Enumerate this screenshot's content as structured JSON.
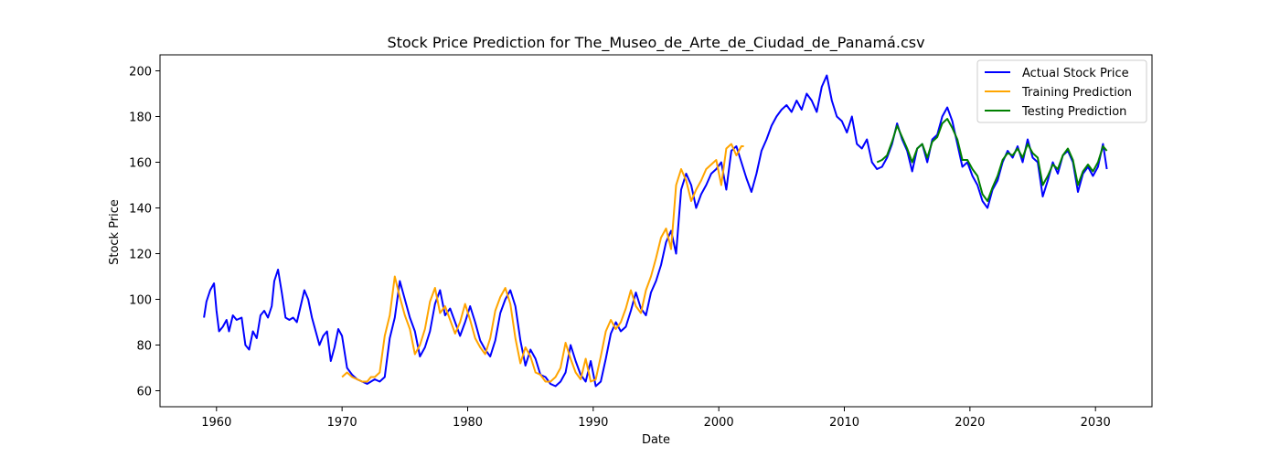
{
  "chart_data": {
    "type": "line",
    "title": "Stock Price Prediction for The_Museo_de_Arte_de_Ciudad_de_Panamá.csv",
    "xlabel": "Date",
    "ylabel": "Stock Price",
    "xlim": [
      1955.5,
      2034.5
    ],
    "ylim": [
      53,
      207
    ],
    "x_ticks": [
      1960,
      1970,
      1980,
      1990,
      2000,
      2010,
      2020,
      2030
    ],
    "y_ticks": [
      60,
      80,
      100,
      120,
      140,
      160,
      180,
      200
    ],
    "legend_position": "top-right",
    "grid": false,
    "series": [
      {
        "name": "Actual Stock Price",
        "color": "#0000ff",
        "x": [
          1959.0,
          1959.2,
          1959.5,
          1959.8,
          1960.0,
          1960.2,
          1960.5,
          1960.8,
          1961.0,
          1961.3,
          1961.6,
          1962.0,
          1962.3,
          1962.6,
          1962.9,
          1963.2,
          1963.5,
          1963.8,
          1964.1,
          1964.4,
          1964.6,
          1964.9,
          1965.2,
          1965.5,
          1965.8,
          1966.1,
          1966.4,
          1966.7,
          1967.0,
          1967.3,
          1967.6,
          1967.9,
          1968.2,
          1968.5,
          1968.8,
          1969.1,
          1969.4,
          1969.7,
          1970.0,
          1970.4,
          1970.8,
          1971.2,
          1971.6,
          1972.0,
          1972.3,
          1972.6,
          1973.0,
          1973.4,
          1973.8,
          1974.2,
          1974.6,
          1975.0,
          1975.4,
          1975.8,
          1976.2,
          1976.6,
          1977.0,
          1977.4,
          1977.8,
          1978.2,
          1978.6,
          1979.0,
          1979.4,
          1979.8,
          1980.2,
          1980.6,
          1981.0,
          1981.4,
          1981.8,
          1982.2,
          1982.6,
          1983.0,
          1983.4,
          1983.8,
          1984.2,
          1984.6,
          1985.0,
          1985.4,
          1985.8,
          1986.2,
          1986.6,
          1987.0,
          1987.4,
          1987.8,
          1988.2,
          1988.6,
          1989.0,
          1989.4,
          1989.8,
          1990.2,
          1990.6,
          1991.0,
          1991.4,
          1991.8,
          1992.2,
          1992.6,
          1993.0,
          1993.4,
          1993.8,
          1994.2,
          1994.6,
          1995.0,
          1995.4,
          1995.8,
          1996.2,
          1996.6,
          1997.0,
          1997.4,
          1997.8,
          1998.2,
          1998.6,
          1999.0,
          1999.4,
          1999.8,
          2000.2,
          2000.6,
          2001.0,
          2001.4,
          2001.8,
          2002.2,
          2002.6,
          2003.0,
          2003.4,
          2003.8,
          2004.2,
          2004.6,
          2005.0,
          2005.4,
          2005.8,
          2006.2,
          2006.6,
          2007.0,
          2007.4,
          2007.8,
          2008.2,
          2008.6,
          2009.0,
          2009.4,
          2009.8,
          2010.2,
          2010.6,
          2011.0,
          2011.4,
          2011.8,
          2012.2,
          2012.6,
          2013.0,
          2013.4,
          2013.8,
          2014.2,
          2014.6,
          2015.0,
          2015.4,
          2015.8,
          2016.2,
          2016.6,
          2017.0,
          2017.4,
          2017.8,
          2018.2,
          2018.6,
          2019.0,
          2019.4,
          2019.8,
          2020.2,
          2020.6,
          2021.0,
          2021.4,
          2021.8,
          2022.2,
          2022.6,
          2023.0,
          2023.4,
          2023.8,
          2024.2,
          2024.6,
          2025.0,
          2025.4,
          2025.8,
          2026.2,
          2026.6,
          2027.0,
          2027.4,
          2027.8,
          2028.2,
          2028.6,
          2029.0,
          2029.4,
          2029.8,
          2030.2,
          2030.6,
          2030.9
        ],
        "values": [
          92,
          99,
          104,
          107,
          95,
          86,
          88,
          91,
          86,
          93,
          91,
          92,
          80,
          78,
          86,
          83,
          93,
          95,
          92,
          97,
          108,
          113,
          103,
          92,
          91,
          92,
          90,
          97,
          104,
          100,
          92,
          86,
          80,
          84,
          86,
          73,
          79,
          87,
          84,
          70,
          67,
          65,
          64,
          63,
          64,
          65,
          64,
          66,
          83,
          92,
          108,
          100,
          92,
          86,
          75,
          79,
          86,
          98,
          104,
          93,
          96,
          90,
          84,
          90,
          97,
          90,
          82,
          78,
          75,
          82,
          94,
          100,
          104,
          97,
          82,
          71,
          78,
          74,
          67,
          66,
          63,
          62,
          64,
          68,
          80,
          73,
          67,
          64,
          73,
          62,
          64,
          74,
          85,
          90,
          86,
          88,
          95,
          103,
          96,
          93,
          103,
          108,
          115,
          125,
          130,
          120,
          148,
          155,
          150,
          140,
          146,
          150,
          155,
          157,
          160,
          148,
          165,
          167,
          160,
          153,
          147,
          155,
          165,
          170,
          176,
          180,
          183,
          185,
          182,
          187,
          183,
          190,
          187,
          182,
          193,
          198,
          187,
          180,
          178,
          173,
          180,
          168,
          166,
          170,
          160,
          157,
          158,
          162,
          168,
          177,
          170,
          165,
          156,
          166,
          168,
          160,
          170,
          172,
          180,
          184,
          178,
          168,
          158,
          160,
          154,
          150,
          143,
          140,
          148,
          152,
          160,
          165,
          162,
          167,
          160,
          170,
          162,
          160,
          145,
          152,
          160,
          155,
          163,
          165,
          160,
          147,
          155,
          158,
          154,
          158,
          168,
          157
        ],
        "start": 0,
        "end": 191
      },
      {
        "name": "Training Prediction",
        "color": "#ffa500",
        "x": [
          1970.0,
          1970.4,
          1970.8,
          1971.2,
          1971.6,
          1972.0,
          1972.3,
          1972.6,
          1973.0,
          1973.4,
          1973.8,
          1974.2,
          1974.6,
          1975.0,
          1975.4,
          1975.8,
          1976.2,
          1976.6,
          1977.0,
          1977.4,
          1977.8,
          1978.2,
          1978.6,
          1979.0,
          1979.4,
          1979.8,
          1980.2,
          1980.6,
          1981.0,
          1981.4,
          1981.8,
          1982.2,
          1982.6,
          1983.0,
          1983.4,
          1983.8,
          1984.2,
          1984.6,
          1985.0,
          1985.4,
          1985.8,
          1986.2,
          1986.6,
          1987.0,
          1987.4,
          1987.8,
          1988.2,
          1988.6,
          1989.0,
          1989.4,
          1989.8,
          1990.2,
          1990.6,
          1991.0,
          1991.4,
          1991.8,
          1992.2,
          1992.6,
          1993.0,
          1993.4,
          1993.8,
          1994.2,
          1994.6,
          1995.0,
          1995.4,
          1995.8,
          1996.2,
          1996.6,
          1997.0,
          1997.4,
          1997.8,
          1998.2,
          1998.6,
          1999.0,
          1999.4,
          1999.8,
          2000.2,
          2000.6,
          2001.0,
          2001.4,
          2001.8,
          2002.0
        ],
        "values": [
          66,
          68,
          66,
          65,
          64,
          64,
          66,
          66,
          68,
          84,
          93,
          110,
          101,
          93,
          87,
          76,
          80,
          87,
          99,
          105,
          94,
          97,
          91,
          85,
          90,
          98,
          91,
          83,
          79,
          76,
          83,
          95,
          101,
          105,
          98,
          83,
          72,
          79,
          75,
          68,
          67,
          64,
          64,
          66,
          70,
          81,
          74,
          68,
          65,
          74,
          64,
          65,
          75,
          86,
          91,
          87,
          90,
          96,
          104,
          97,
          94,
          104,
          110,
          118,
          127,
          131,
          122,
          150,
          157,
          152,
          143,
          148,
          152,
          157,
          159,
          161,
          150,
          166,
          168,
          163,
          167,
          167
        ]
      },
      {
        "name": "Testing Prediction",
        "color": "#008000",
        "x": [
          2012.6,
          2013.0,
          2013.4,
          2013.8,
          2014.2,
          2014.6,
          2015.0,
          2015.4,
          2015.8,
          2016.2,
          2016.6,
          2017.0,
          2017.4,
          2017.8,
          2018.2,
          2018.6,
          2019.0,
          2019.4,
          2019.8,
          2020.2,
          2020.6,
          2021.0,
          2021.4,
          2021.8,
          2022.2,
          2022.6,
          2023.0,
          2023.4,
          2023.8,
          2024.2,
          2024.6,
          2025.0,
          2025.4,
          2025.8,
          2026.2,
          2026.6,
          2027.0,
          2027.4,
          2027.8,
          2028.2,
          2028.6,
          2029.0,
          2029.4,
          2029.8,
          2030.2,
          2030.6,
          2030.9
        ],
        "values": [
          160,
          161,
          163,
          169,
          176,
          171,
          166,
          160,
          166,
          168,
          162,
          169,
          171,
          177,
          179,
          175,
          170,
          161,
          161,
          157,
          154,
          146,
          143,
          149,
          154,
          161,
          164,
          163,
          166,
          162,
          168,
          164,
          162,
          150,
          154,
          159,
          157,
          163,
          166,
          161,
          150,
          156,
          159,
          156,
          160,
          167,
          165
        ]
      }
    ]
  }
}
